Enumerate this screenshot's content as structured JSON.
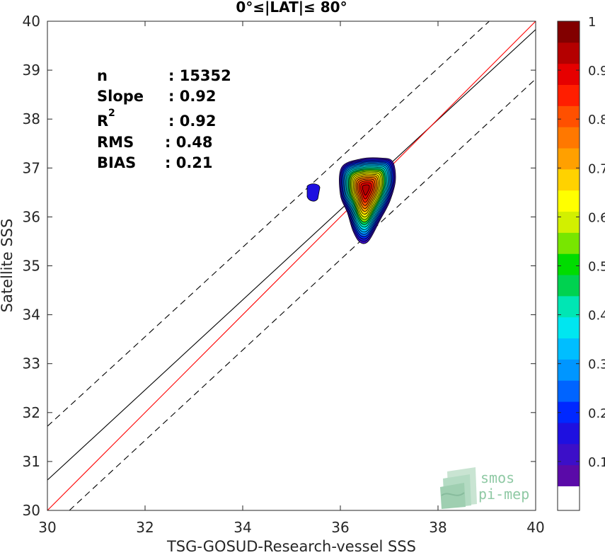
{
  "chart_data": {
    "type": "heatmap",
    "title": "0°≤|LAT|≤ 80°",
    "xlabel": "TSG-GOSUD-Research-vessel SSS",
    "ylabel": "Satellite SSS",
    "xlim": [
      30,
      40
    ],
    "ylim": [
      30,
      40
    ],
    "xticks": [
      "30",
      "32",
      "34",
      "36",
      "38",
      "40"
    ],
    "yticks": [
      "30",
      "31",
      "32",
      "33",
      "34",
      "35",
      "36",
      "37",
      "38",
      "39",
      "40"
    ],
    "grid": false,
    "stats": [
      {
        "label": "n",
        "value": ": 15352"
      },
      {
        "label": "Slope",
        "value": ": 0.92"
      },
      {
        "label": "R",
        "sup": "2",
        "value": ": 0.92"
      },
      {
        "label": "RMS",
        "value": ": 0.48"
      },
      {
        "label": "BIAS",
        "value": ": 0.21"
      }
    ],
    "identity_line": {
      "color": "#ff0000",
      "x": [
        30,
        40
      ],
      "y": [
        30,
        40
      ]
    },
    "fit_line": {
      "color": "#000000",
      "x": [
        30,
        40
      ],
      "y": [
        30.62,
        39.83
      ]
    },
    "dashed_lines": [
      {
        "x": [
          30,
          39.05
        ],
        "y": [
          31.72,
          40
        ]
      },
      {
        "x": [
          30.45,
          40
        ],
        "y": [
          30,
          38.82
        ]
      }
    ],
    "density_peak": {
      "x": 36.52,
      "y": 36.58
    },
    "density_levels": [
      0.05,
      0.1,
      0.15,
      0.2,
      0.25,
      0.3,
      0.35,
      0.4,
      0.45,
      0.5,
      0.55,
      0.6,
      0.65,
      0.7,
      0.75,
      0.8,
      0.85,
      0.9,
      0.95
    ],
    "secondary_blob": {
      "x": 35.45,
      "y": 36.5,
      "level": 0.1
    },
    "colorbar": {
      "ticks": [
        "0.1",
        "0.2",
        "0.3",
        "0.4",
        "0.5",
        "0.6",
        "0.7",
        "0.8",
        "0.9",
        "1"
      ],
      "lim": [
        0,
        1
      ],
      "first_bin_color": "#ffffff",
      "colors": [
        "#ffffff",
        "#5a0aa8",
        "#3c0fc8",
        "#1e10e0",
        "#0028ff",
        "#0064ff",
        "#0096ff",
        "#00beff",
        "#00e6f0",
        "#00e6b4",
        "#00d250",
        "#00dc00",
        "#78e600",
        "#d2f000",
        "#ffff00",
        "#ffd200",
        "#ffa000",
        "#ff7800",
        "#ff5000",
        "#ff1e00",
        "#e60000",
        "#b40000",
        "#820000"
      ]
    }
  },
  "logo": {
    "line1": "smos",
    "line2": "pi-mep"
  }
}
